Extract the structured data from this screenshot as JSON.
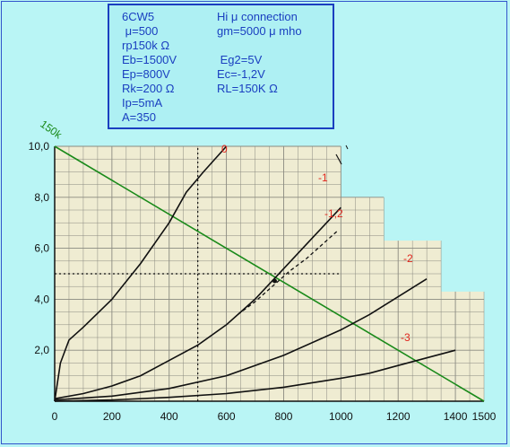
{
  "info": {
    "rows": [
      [
        "6CW5",
        "Hi μ connection"
      ],
      [
        " μ=500",
        "gm=5000 μ mho"
      ],
      [
        "rp150k Ω",
        ""
      ],
      [
        "Eb=1500V",
        " Eg2=5V"
      ],
      [
        "Ep=800V",
        "Ec=-1,2V"
      ],
      [
        "Rk=200 Ω",
        "RL=150K Ω"
      ],
      [
        "Ip=5mA",
        ""
      ],
      [
        "A=350",
        ""
      ]
    ]
  },
  "chart_data": {
    "type": "line",
    "title": "",
    "xlabel": "",
    "ylabel": "",
    "xlim": [
      0,
      1500
    ],
    "ylim": [
      0,
      10
    ],
    "xticks": [
      "0",
      "200",
      "400",
      "600",
      "800",
      "1000",
      "1200",
      "1400",
      "1500"
    ],
    "yticks": [
      "2,0",
      "4,0",
      "6,0",
      "8,0",
      "10,0"
    ],
    "grid": true,
    "series": [
      {
        "name": "0",
        "x": [
          0,
          20,
          50,
          100,
          200,
          300,
          400,
          460,
          520,
          600
        ],
        "y": [
          0,
          1.5,
          2.4,
          2.9,
          4.0,
          5.4,
          7.0,
          8.2,
          9.0,
          10.0
        ]
      },
      {
        "name": "-1",
        "x": [
          0,
          100,
          200,
          300,
          400,
          500,
          600,
          700,
          800,
          900,
          1000
        ],
        "y": [
          0.1,
          0.3,
          0.6,
          1.0,
          1.6,
          2.2,
          3.0,
          4.0,
          5.2,
          6.4,
          7.6
        ]
      },
      {
        "name": "-1,2",
        "x": [
          640,
          700,
          760,
          820,
          880,
          940,
          990
        ],
        "y": [
          3.4,
          3.9,
          4.5,
          5.1,
          5.6,
          6.2,
          6.7
        ]
      },
      {
        "name": "-2",
        "x": [
          0,
          200,
          400,
          600,
          800,
          1000,
          1100,
          1200,
          1300
        ],
        "y": [
          0.05,
          0.2,
          0.5,
          1.0,
          1.8,
          2.8,
          3.4,
          4.1,
          4.8
        ]
      },
      {
        "name": "-3",
        "x": [
          0,
          200,
          400,
          600,
          800,
          1000,
          1100,
          1200,
          1300,
          1400
        ],
        "y": [
          0,
          0.05,
          0.15,
          0.3,
          0.55,
          0.9,
          1.1,
          1.4,
          1.7,
          2.0
        ]
      }
    ],
    "load_line": {
      "name": "150k",
      "x": [
        0,
        1500
      ],
      "y": [
        10,
        0
      ]
    },
    "operating_point": {
      "x": 800,
      "y": 5
    },
    "colors": {
      "load_line": "#1a8a1a",
      "curve_labels": "#e0251c",
      "text": "#1a3fc0",
      "curves": "#111111"
    }
  }
}
